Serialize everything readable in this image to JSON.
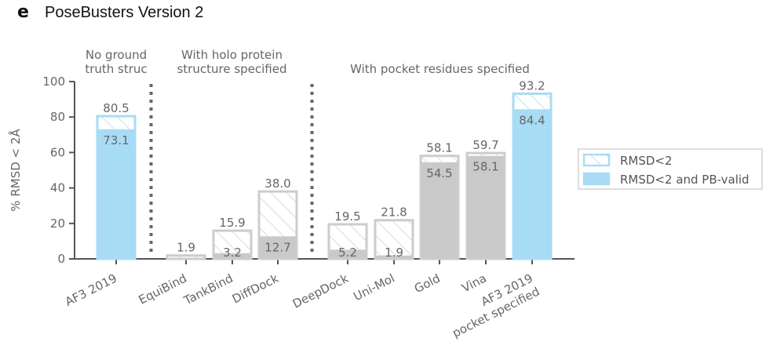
{
  "panel_letter": "e",
  "chart_data": {
    "type": "bar",
    "title": "PoseBusters Version 2",
    "ylabel": "% RMSD < 2Å",
    "xlabel": "",
    "ylim": [
      0,
      100
    ],
    "yticks": [
      0,
      20,
      40,
      60,
      80,
      100
    ],
    "grid": false,
    "legend_position": "right",
    "categories": [
      [
        "AF3 2019"
      ],
      [
        "EquiBind"
      ],
      [
        "TankBind"
      ],
      [
        "DiffDock"
      ],
      [
        "DeepDock"
      ],
      [
        "Uni-Mol"
      ],
      [
        "Gold"
      ],
      [
        "Vina"
      ],
      [
        "AF3 2019",
        "pocket specified"
      ]
    ],
    "series": [
      {
        "name": "RMSD<2",
        "values": [
          80.5,
          1.9,
          15.9,
          38.0,
          19.5,
          21.8,
          58.1,
          59.7,
          93.2
        ]
      },
      {
        "name": "RMSD<2 and PB-valid",
        "values": [
          73.1,
          null,
          3.2,
          12.7,
          5.2,
          1.9,
          54.5,
          58.1,
          84.4
        ]
      }
    ],
    "labels_top": [
      "80.5",
      "1.9",
      "15.9",
      "38.0",
      "19.5",
      "21.8",
      "58.1",
      "59.7",
      "93.2"
    ],
    "labels_inner": [
      "73.1",
      "",
      "3.2",
      "12.7",
      "5.2",
      "1.9",
      "54.5",
      "58.1",
      "84.4"
    ],
    "highlight": [
      true,
      false,
      false,
      false,
      false,
      false,
      false,
      false,
      true
    ],
    "groups": [
      {
        "lines": [
          "No ground",
          "truth struc"
        ],
        "span": [
          0,
          0
        ]
      },
      {
        "lines": [
          "With holo protein",
          "structure specified"
        ],
        "span": [
          1,
          3
        ]
      },
      {
        "lines": [
          "With pocket residues specified"
        ],
        "span": [
          4,
          8
        ]
      }
    ],
    "separators_after": [
      0,
      3
    ],
    "legend": [
      "RMSD<2",
      "RMSD<2 and PB-valid"
    ]
  },
  "colors": {
    "highlight_fill": "#a8dcf4",
    "highlight_outline": "#a8dcf4",
    "gray_fill": "#c9c9c9",
    "gray_outline": "#cccccc",
    "hatch": "#d0d0d0",
    "axis": "#555555",
    "separator": "#666666",
    "text": "#666666"
  }
}
